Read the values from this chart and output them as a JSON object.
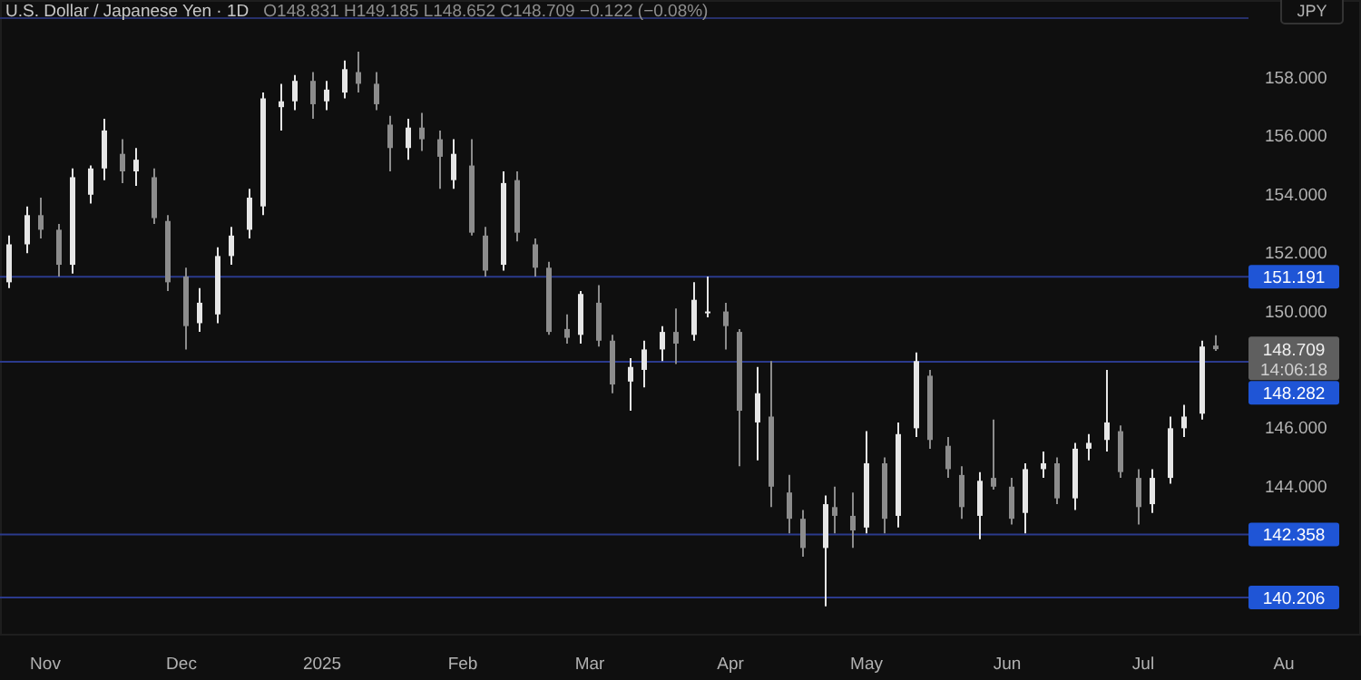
{
  "chart_data": {
    "type": "candlestick",
    "title": "U.S. Dollar / Japanese Yen · 1D",
    "annotations": [
      "O148.831 H149.185 L148.652 C148.709 −0.122 (−0.08%)",
      "148.709",
      "14:06:18",
      "JPY"
    ],
    "x": [
      "2024-10-24",
      "2024-10-28",
      "2024-10-31",
      "2024-11-04",
      "2024-11-07",
      "2024-11-11",
      "2024-11-14",
      "2024-11-18",
      "2024-11-21",
      "2024-11-25",
      "2024-11-28",
      "2024-12-02",
      "2024-12-05",
      "2024-12-09",
      "2024-12-12",
      "2024-12-16",
      "2024-12-19",
      "2024-12-23",
      "2024-12-26",
      "2024-12-30",
      "2025-01-02",
      "2025-01-06",
      "2025-01-09",
      "2025-01-13",
      "2025-01-16",
      "2025-01-20",
      "2025-01-23",
      "2025-01-27",
      "2025-01-30",
      "2025-02-03",
      "2025-02-06",
      "2025-02-10",
      "2025-02-13",
      "2025-02-17",
      "2025-02-20",
      "2025-02-24",
      "2025-02-27",
      "2025-03-03",
      "2025-03-06",
      "2025-03-10",
      "2025-03-13",
      "2025-03-17",
      "2025-03-20",
      "2025-03-24",
      "2025-03-27",
      "2025-03-31",
      "2025-04-03",
      "2025-04-07",
      "2025-04-10",
      "2025-04-14",
      "2025-04-17",
      "2025-04-22",
      "2025-04-24",
      "2025-04-28",
      "2025-05-01",
      "2025-05-05",
      "2025-05-08",
      "2025-05-12",
      "2025-05-15",
      "2025-05-19",
      "2025-05-22",
      "2025-05-26",
      "2025-05-29",
      "2025-06-02",
      "2025-06-05",
      "2025-06-09",
      "2025-06-12",
      "2025-06-16",
      "2025-06-19",
      "2025-06-23",
      "2025-06-26",
      "2025-06-30",
      "2025-07-03",
      "2025-07-07",
      "2025-07-10",
      "2025-07-14",
      "2025-07-17"
    ],
    "ohlc": [
      [
        151.0,
        152.6,
        150.8,
        152.3
      ],
      [
        152.3,
        153.6,
        152.0,
        153.3
      ],
      [
        153.3,
        153.9,
        152.5,
        152.8
      ],
      [
        152.8,
        153.0,
        151.2,
        151.6
      ],
      [
        151.6,
        154.9,
        151.3,
        154.6
      ],
      [
        154.0,
        155.0,
        153.7,
        154.9
      ],
      [
        154.9,
        156.6,
        154.5,
        156.2
      ],
      [
        155.4,
        155.9,
        154.4,
        154.8
      ],
      [
        154.8,
        155.6,
        154.3,
        155.2
      ],
      [
        154.6,
        154.9,
        153.0,
        153.2
      ],
      [
        153.1,
        153.3,
        150.7,
        151.0
      ],
      [
        151.2,
        151.5,
        148.7,
        149.5
      ],
      [
        149.6,
        150.8,
        149.3,
        150.3
      ],
      [
        149.9,
        152.2,
        149.6,
        151.9
      ],
      [
        151.9,
        152.9,
        151.6,
        152.6
      ],
      [
        152.8,
        154.2,
        152.5,
        153.9
      ],
      [
        153.6,
        157.5,
        153.3,
        157.3
      ],
      [
        157.0,
        157.8,
        156.2,
        157.2
      ],
      [
        157.2,
        158.1,
        156.9,
        157.9
      ],
      [
        157.9,
        158.2,
        156.6,
        157.1
      ],
      [
        157.2,
        157.9,
        156.9,
        157.6
      ],
      [
        157.5,
        158.6,
        157.3,
        158.3
      ],
      [
        158.2,
        158.9,
        157.5,
        157.8
      ],
      [
        157.8,
        158.2,
        156.9,
        157.1
      ],
      [
        156.4,
        156.7,
        154.8,
        155.6
      ],
      [
        155.6,
        156.6,
        155.2,
        156.3
      ],
      [
        156.3,
        156.8,
        155.5,
        155.9
      ],
      [
        155.9,
        156.2,
        154.2,
        155.3
      ],
      [
        154.5,
        155.9,
        154.2,
        155.4
      ],
      [
        155.0,
        155.9,
        152.6,
        152.7
      ],
      [
        152.6,
        152.9,
        151.2,
        151.4
      ],
      [
        151.6,
        154.8,
        151.4,
        154.4
      ],
      [
        154.5,
        154.8,
        152.4,
        152.7
      ],
      [
        152.3,
        152.5,
        151.2,
        151.5
      ],
      [
        151.5,
        151.7,
        149.2,
        149.3
      ],
      [
        149.4,
        149.9,
        148.9,
        149.1
      ],
      [
        149.2,
        150.7,
        148.9,
        150.6
      ],
      [
        150.3,
        150.9,
        148.8,
        149.0
      ],
      [
        149.0,
        149.2,
        147.2,
        147.5
      ],
      [
        147.6,
        148.4,
        146.6,
        148.1
      ],
      [
        148.0,
        149.0,
        147.4,
        148.7
      ],
      [
        148.7,
        149.5,
        148.3,
        149.3
      ],
      [
        149.3,
        150.1,
        148.2,
        148.9
      ],
      [
        149.2,
        151.0,
        149.0,
        150.4
      ],
      [
        150.0,
        151.2,
        149.8,
        150.0
      ],
      [
        150.0,
        150.3,
        148.7,
        149.5
      ],
      [
        149.3,
        149.4,
        144.7,
        146.6
      ],
      [
        146.2,
        148.1,
        144.9,
        147.2
      ],
      [
        146.4,
        148.3,
        143.3,
        144.0
      ],
      [
        143.8,
        144.4,
        142.4,
        142.9
      ],
      [
        142.9,
        143.2,
        141.6,
        141.9
      ],
      [
        141.9,
        143.7,
        139.9,
        143.4
      ],
      [
        143.3,
        144.0,
        142.4,
        143.0
      ],
      [
        143.0,
        143.8,
        141.9,
        142.5
      ],
      [
        142.6,
        145.9,
        142.4,
        144.8
      ],
      [
        144.8,
        145.0,
        142.4,
        142.9
      ],
      [
        143.0,
        146.2,
        142.6,
        145.8
      ],
      [
        146.0,
        148.6,
        145.7,
        148.3
      ],
      [
        147.8,
        148.0,
        145.3,
        145.6
      ],
      [
        145.4,
        145.7,
        144.3,
        144.6
      ],
      [
        144.4,
        144.7,
        142.9,
        143.3
      ],
      [
        143.0,
        144.5,
        142.2,
        144.2
      ],
      [
        144.3,
        146.3,
        143.9,
        144.0
      ],
      [
        144.0,
        144.3,
        142.7,
        142.9
      ],
      [
        143.1,
        144.8,
        142.4,
        144.6
      ],
      [
        144.6,
        145.2,
        144.3,
        144.8
      ],
      [
        144.8,
        145.0,
        143.4,
        143.6
      ],
      [
        143.6,
        145.5,
        143.2,
        145.3
      ],
      [
        145.3,
        145.8,
        144.9,
        145.5
      ],
      [
        145.6,
        148.0,
        145.2,
        146.2
      ],
      [
        145.9,
        146.1,
        144.3,
        144.5
      ],
      [
        144.3,
        144.6,
        142.7,
        143.3
      ],
      [
        143.4,
        144.6,
        143.1,
        144.3
      ],
      [
        144.3,
        146.4,
        144.1,
        146.0
      ],
      [
        146.0,
        146.8,
        145.7,
        146.4
      ],
      [
        146.5,
        149.0,
        146.3,
        148.8
      ],
      [
        148.831,
        149.185,
        148.652,
        148.709
      ]
    ],
    "xlim": [
      "2024-10-22",
      "2025-08-18"
    ],
    "xticks": [
      {
        "value": "2024-11-01",
        "label": "Nov"
      },
      {
        "value": "2024-12-01",
        "label": "Dec"
      },
      {
        "value": "2025-01-01",
        "label": "2025"
      },
      {
        "value": "2025-02-01",
        "label": "Feb"
      },
      {
        "value": "2025-03-01",
        "label": "Mar"
      },
      {
        "value": "2025-04-01",
        "label": "Apr"
      },
      {
        "value": "2025-05-01",
        "label": "May"
      },
      {
        "value": "2025-06-01",
        "label": "Jun"
      },
      {
        "value": "2025-07-01",
        "label": "Jul"
      },
      {
        "value": "2025-08-01",
        "label": "Au"
      }
    ],
    "ylim": [
      138.93,
      160.67
    ],
    "yticks": [
      {
        "value": 158,
        "label": "158.000"
      },
      {
        "value": 156,
        "label": "156.000"
      },
      {
        "value": 154,
        "label": "154.000"
      },
      {
        "value": 152,
        "label": "152.000"
      },
      {
        "value": 150,
        "label": "150.000"
      },
      {
        "value": 146,
        "label": "146.000"
      },
      {
        "value": 144,
        "label": "144.000"
      }
    ],
    "ref_lines": [
      {
        "axis": "y",
        "value": 160.05,
        "color": "#27306b"
      },
      {
        "axis": "y",
        "value": 151.191,
        "label": "151.191",
        "color": "#2b3a8c"
      },
      {
        "axis": "y",
        "value": 148.282,
        "label": "148.282",
        "color": "#2b3a8c"
      },
      {
        "axis": "y",
        "value": 142.358,
        "label": "142.358",
        "color": "#2b3a8c"
      },
      {
        "axis": "y",
        "value": 140.206,
        "label": "140.206",
        "color": "#2b3a8c"
      }
    ],
    "grid": false
  }
}
